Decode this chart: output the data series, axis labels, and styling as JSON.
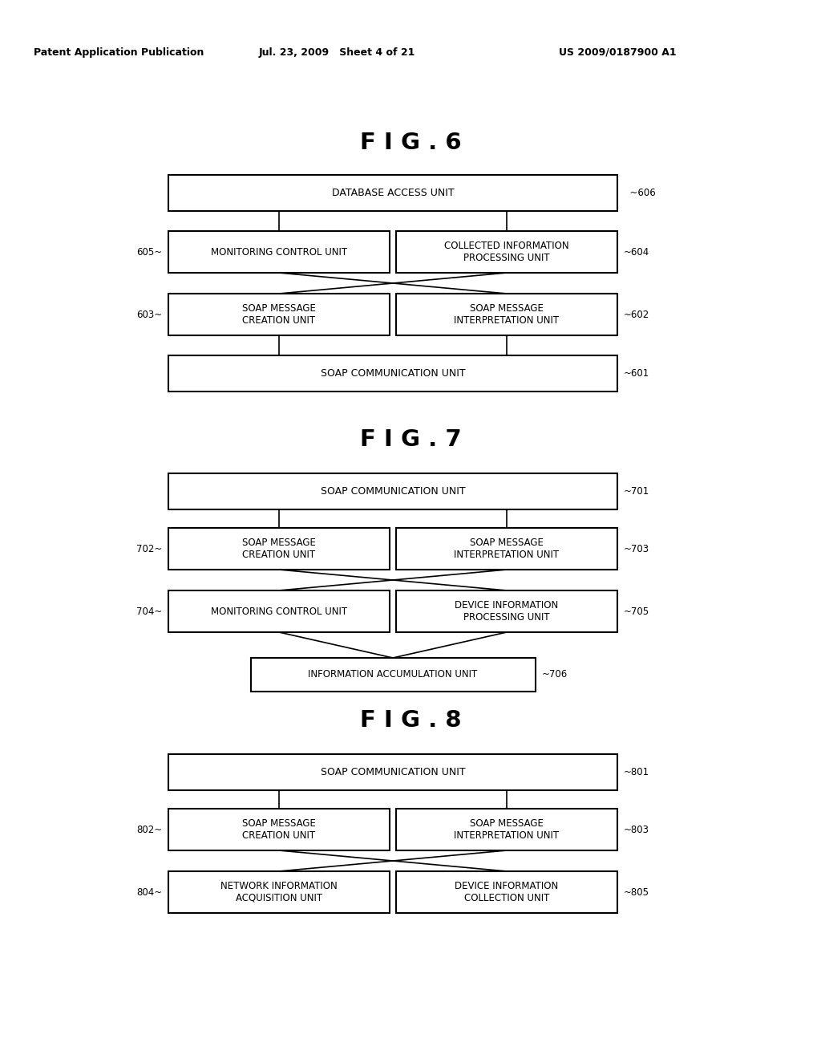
{
  "header_left": "Patent Application Publication",
  "header_mid": "Jul. 23, 2009   Sheet 4 of 21",
  "header_right": "US 2009/0187900 A1",
  "fig6_title": "F I G . 6",
  "fig7_title": "F I G . 7",
  "fig8_title": "F I G . 8",
  "background": "#ffffff",
  "box_edge": "#000000",
  "text_color": "#000000"
}
